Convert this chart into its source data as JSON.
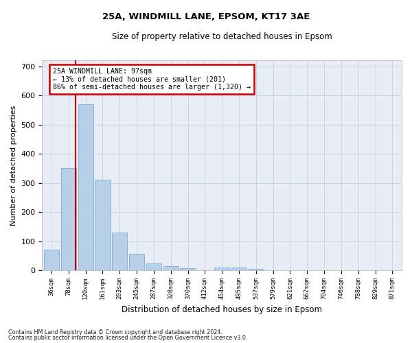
{
  "title1": "25A, WINDMILL LANE, EPSOM, KT17 3AE",
  "title2": "Size of property relative to detached houses in Epsom",
  "xlabel": "Distribution of detached houses by size in Epsom",
  "ylabel": "Number of detached properties",
  "categories": [
    "36sqm",
    "78sqm",
    "120sqm",
    "161sqm",
    "203sqm",
    "245sqm",
    "287sqm",
    "328sqm",
    "370sqm",
    "412sqm",
    "454sqm",
    "495sqm",
    "537sqm",
    "579sqm",
    "621sqm",
    "662sqm",
    "704sqm",
    "746sqm",
    "788sqm",
    "829sqm",
    "871sqm"
  ],
  "values": [
    70,
    350,
    570,
    310,
    130,
    57,
    25,
    15,
    7,
    0,
    10,
    10,
    5,
    0,
    0,
    0,
    0,
    0,
    0,
    0,
    0
  ],
  "bar_color": "#b8cfe8",
  "bar_edge_color": "#7aadd4",
  "redline_color": "#cc0000",
  "annotation_text": "25A WINDMILL LANE: 97sqm\n← 13% of detached houses are smaller (201)\n86% of semi-detached houses are larger (1,320) →",
  "annotation_box_color": "#ffffff",
  "annotation_box_edge": "#cc0000",
  "ylim": [
    0,
    720
  ],
  "yticks": [
    0,
    100,
    200,
    300,
    400,
    500,
    600,
    700
  ],
  "grid_color": "#c8d4e8",
  "bg_color": "#e8edf5",
  "footer1": "Contains HM Land Registry data © Crown copyright and database right 2024.",
  "footer2": "Contains public sector information licensed under the Open Government Licence v3.0."
}
